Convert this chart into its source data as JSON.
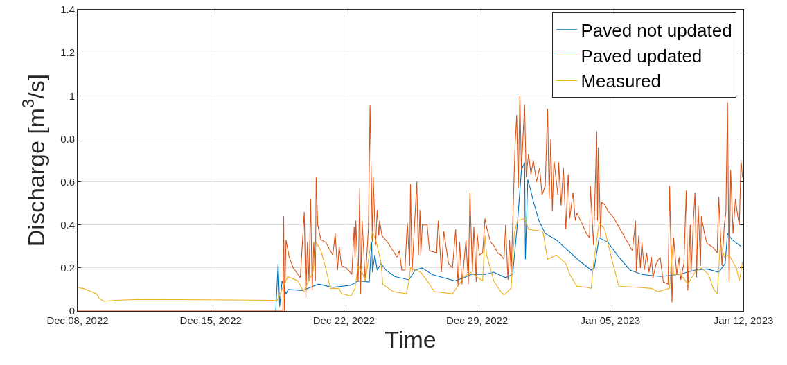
{
  "chart_data": {
    "type": "line",
    "xlabel": "Time",
    "ylabel": "Discharge [m$^{3}$/s]",
    "xlim": [
      "2022-12-08",
      "2023-01-12"
    ],
    "xticks": [
      {
        "value": "2022-12-08",
        "label": "Dec 08, 2022"
      },
      {
        "value": "2022-12-15",
        "label": "Dec 15, 2022"
      },
      {
        "value": "2022-12-22",
        "label": "Dec 22, 2022"
      },
      {
        "value": "2022-12-29",
        "label": "Dec 29, 2022"
      },
      {
        "value": "2023-01-05",
        "label": "Jan 05, 2023"
      },
      {
        "value": "2023-01-12",
        "label": "Jan 12, 2023"
      }
    ],
    "ylim": [
      0,
      1.4
    ],
    "yticks": [
      0,
      0.2,
      0.4,
      0.6,
      0.8,
      1,
      1.2,
      1.4
    ],
    "grid": true,
    "legend": "top right",
    "marker": "none",
    "line_style": "solid",
    "series": [
      {
        "name": "Paved not updated",
        "color": "#0072bd",
        "x": [
          "2022-12-18T10:00",
          "2022-12-18T13:00",
          "2022-12-18T15:00",
          "2022-12-18T18:00",
          "2022-12-18T23:00",
          "2022-12-19T02:00",
          "2022-12-19T20:00",
          "2022-12-19T23:00",
          "2022-12-20T16:00",
          "2022-12-21T10:00",
          "2022-12-22T09:00",
          "2022-12-22T18:00",
          "2022-12-23T08:00",
          "2022-12-23T11:00",
          "2022-12-23T12:00",
          "2022-12-23T15:00",
          "2022-12-23T18:00",
          "2022-12-23T23:00",
          "2022-12-24T05:00",
          "2022-12-24T16:00",
          "2022-12-25T10:00",
          "2022-12-25T18:00",
          "2022-12-26T03:00",
          "2022-12-26T15:00",
          "2022-12-27T20:00",
          "2022-12-28T08:00",
          "2022-12-28T16:00",
          "2022-12-29T10:00",
          "2022-12-29T21:00",
          "2022-12-30T03:00",
          "2022-12-30T12:00",
          "2022-12-30T21:00",
          "2022-12-31T03:00",
          "2022-12-31T08:00",
          "2022-12-31T12:00",
          "2022-12-31T13:00",
          "2022-12-31T16:00",
          "2022-12-31T19:00",
          "2022-12-31T23:00",
          "2023-01-01T06:00",
          "2023-01-01T14:00",
          "2023-01-02T04:00",
          "2023-01-02T19:00",
          "2023-01-03T10:00",
          "2023-01-04T00:00",
          "2023-01-04T04:00",
          "2023-01-04T10:00",
          "2023-01-04T21:00",
          "2023-01-05T11:00",
          "2023-01-06T01:00",
          "2023-01-06T16:00",
          "2023-01-07T15:00",
          "2023-01-08T15:00",
          "2023-01-09T11:00",
          "2023-01-10T02:00",
          "2023-01-10T17:00",
          "2023-01-11T01:00",
          "2023-01-11T04:00",
          "2023-01-11T10:00",
          "2023-01-11T21:00"
        ],
        "values": [
          0,
          0.22,
          0.02,
          0.14,
          0.08,
          0.1,
          0.095,
          0.1,
          0.125,
          0.11,
          0.12,
          0.14,
          0.135,
          0.32,
          0.18,
          0.26,
          0.19,
          0.22,
          0.19,
          0.16,
          0.145,
          0.19,
          0.2,
          0.17,
          0.14,
          0.155,
          0.17,
          0.17,
          0.18,
          0.17,
          0.155,
          0.17,
          0.41,
          0.655,
          0.69,
          0.24,
          0.61,
          0.57,
          0.51,
          0.42,
          0.36,
          0.33,
          0.28,
          0.23,
          0.19,
          0.2,
          0.34,
          0.32,
          0.25,
          0.19,
          0.17,
          0.16,
          0.17,
          0.19,
          0.195,
          0.18,
          0.22,
          0.36,
          0.33,
          0.3
        ]
      },
      {
        "name": "Paved updated",
        "color": "#d95319",
        "x": [
          "2022-12-08T00:00",
          "2022-12-18T19:00",
          "2022-12-18T20:00",
          "2022-12-18T21:00",
          "2022-12-18T23:00",
          "2022-12-19T03:00",
          "2022-12-19T08:00",
          "2022-12-19T17:00",
          "2022-12-19T22:00",
          "2022-12-20T00:00",
          "2022-12-20T02:00",
          "2022-12-20T04:00",
          "2022-12-20T06:00",
          "2022-12-20T08:00",
          "2022-12-20T10:00",
          "2022-12-20T12:00",
          "2022-12-20T13:00",
          "2022-12-20T15:00",
          "2022-12-20T19:00",
          "2022-12-21T01:00",
          "2022-12-21T10:00",
          "2022-12-21T13:00",
          "2022-12-21T16:00",
          "2022-12-21T18:00",
          "2022-12-21T21:00",
          "2022-12-22T03:00",
          "2022-12-22T10:00",
          "2022-12-22T13:00",
          "2022-12-22T14:00",
          "2022-12-22T15:00",
          "2022-12-22T18:00",
          "2022-12-22T20:00",
          "2022-12-22T21:00",
          "2022-12-22T23:00",
          "2022-12-23T03:00",
          "2022-12-23T07:00",
          "2022-12-23T09:00",
          "2022-12-23T12:00",
          "2022-12-23T13:00",
          "2022-12-23T16:00",
          "2022-12-23T18:00",
          "2022-12-23T20:00",
          "2022-12-23T21:00",
          "2022-12-24T00:00",
          "2022-12-24T07:00",
          "2022-12-24T19:00",
          "2022-12-24T22:00",
          "2022-12-25T01:00",
          "2022-12-25T05:00",
          "2022-12-25T08:00",
          "2022-12-25T11:00",
          "2022-12-25T12:00",
          "2022-12-25T14:00",
          "2022-12-25T20:00",
          "2022-12-25T22:00",
          "2022-12-26T00:00",
          "2022-12-26T01:00",
          "2022-12-26T03:00",
          "2022-12-26T09:00",
          "2022-12-26T12:00",
          "2022-12-26T21:00",
          "2022-12-26T23:00",
          "2022-12-27T03:00",
          "2022-12-27T06:00",
          "2022-12-27T12:00",
          "2022-12-27T17:00",
          "2022-12-27T21:00",
          "2022-12-28T00:00",
          "2022-12-28T02:00",
          "2022-12-28T05:00",
          "2022-12-28T10:00",
          "2022-12-28T13:00",
          "2022-12-28T15:00",
          "2022-12-28T18:00",
          "2022-12-28T20:00",
          "2022-12-28T23:00",
          "2022-12-29T00:00",
          "2022-12-29T03:00",
          "2022-12-29T07:00",
          "2022-12-29T10:00",
          "2022-12-29T12:00",
          "2022-12-29T17:00",
          "2022-12-29T21:00",
          "2022-12-30T02:00",
          "2022-12-30T06:00",
          "2022-12-30T10:00",
          "2022-12-30T12:00",
          "2022-12-30T15:00",
          "2022-12-30T17:00",
          "2022-12-30T19:00",
          "2022-12-31T00:00",
          "2022-12-31T02:00",
          "2022-12-31T04:00",
          "2022-12-31T06:00",
          "2022-12-31T08:00",
          "2022-12-31T12:00",
          "2022-12-31T14:00",
          "2022-12-31T17:00",
          "2022-12-31T20:00",
          "2022-12-31T23:00",
          "2023-01-01T03:00",
          "2023-01-01T07:00",
          "2023-01-01T10:00",
          "2023-01-01T14:00",
          "2023-01-01T17:00",
          "2023-01-01T19:00",
          "2023-01-01T21:00",
          "2023-01-01T23:00",
          "2023-01-02T01:00",
          "2023-01-02T06:00",
          "2023-01-02T07:00",
          "2023-01-02T10:00",
          "2023-01-02T13:00",
          "2023-01-02T16:00",
          "2023-01-02T19:00",
          "2023-01-02T21:00",
          "2023-01-03T01:00",
          "2023-01-03T04:00",
          "2023-01-03T06:00",
          "2023-01-03T12:00",
          "2023-01-03T18:00",
          "2023-01-03T22:00",
          "2023-01-03T23:00",
          "2023-01-04T03:00",
          "2023-01-04T07:00",
          "2023-01-04T08:00",
          "2023-01-04T09:00",
          "2023-01-04T12:00",
          "2023-01-04T13:00",
          "2023-01-04T17:00",
          "2023-01-04T21:00",
          "2023-01-05T05:00",
          "2023-01-05T14:00",
          "2023-01-06T04:00",
          "2023-01-06T08:00",
          "2023-01-06T09:00",
          "2023-01-06T12:00",
          "2023-01-06T14:00",
          "2023-01-06T16:00",
          "2023-01-06T19:00",
          "2023-01-06T22:00",
          "2023-01-07T01:00",
          "2023-01-07T04:00",
          "2023-01-07T06:00",
          "2023-01-07T10:00",
          "2023-01-07T15:00",
          "2023-01-07T19:00",
          "2023-01-08T01:00",
          "2023-01-08T03:00",
          "2023-01-08T06:00",
          "2023-01-08T08:00",
          "2023-01-08T12:00",
          "2023-01-08T15:00",
          "2023-01-08T17:00",
          "2023-01-08T21:00",
          "2023-01-09T00:00",
          "2023-01-09T02:00",
          "2023-01-09T05:00",
          "2023-01-09T06:00",
          "2023-01-09T09:00",
          "2023-01-09T11:00",
          "2023-01-09T13:00",
          "2023-01-09T15:00",
          "2023-01-09T18:00",
          "2023-01-09T19:00",
          "2023-01-09T23:00",
          "2023-01-10T02:00",
          "2023-01-10T06:00",
          "2023-01-10T10:00",
          "2023-01-10T15:00",
          "2023-01-10T17:00",
          "2023-01-10T21:00",
          "2023-01-11T00:00",
          "2023-01-11T02:00",
          "2023-01-11T04:00",
          "2023-01-11T06:00",
          "2023-01-11T08:00",
          "2023-01-11T11:00",
          "2023-01-11T14:00",
          "2023-01-11T17:00",
          "2023-01-11T19:00",
          "2023-01-11T21:00",
          "2023-01-11T23:00"
        ],
        "values": [
          0,
          0,
          0.44,
          0,
          0.33,
          0.25,
          0.2,
          0.155,
          0.46,
          0.06,
          0.32,
          0.14,
          0.52,
          0.095,
          0.32,
          0.14,
          0.62,
          0.4,
          0.33,
          0.32,
          0.26,
          0.36,
          0.19,
          0.3,
          0.21,
          0.2,
          0.17,
          0.39,
          0.25,
          0.42,
          0.135,
          0.57,
          0.08,
          0.42,
          0.135,
          0.39,
          0.955,
          0.32,
          0.62,
          0.305,
          0.47,
          0.35,
          0.42,
          0.35,
          0.32,
          0.25,
          0.28,
          0.19,
          0.19,
          0.41,
          0.21,
          0.59,
          0.18,
          0.6,
          0.26,
          0.47,
          0.26,
          0.4,
          0.4,
          0.28,
          0.27,
          0.42,
          0.18,
          0.37,
          0.22,
          0.2,
          0.38,
          0.115,
          0.32,
          0.125,
          0.33,
          0.125,
          0.55,
          0.18,
          0.39,
          0.135,
          0.36,
          0.26,
          0.27,
          0.43,
          0.39,
          0.32,
          0.305,
          0.27,
          0.26,
          0.24,
          0.4,
          0.145,
          0.33,
          0.17,
          0.77,
          0.91,
          0.57,
          1.0,
          0.655,
          0.96,
          0.62,
          0.73,
          0.635,
          0.7,
          0.6,
          0.665,
          0.54,
          0.58,
          0.94,
          0.52,
          0.8,
          0.465,
          0.7,
          0.54,
          0.69,
          0.49,
          0.665,
          0.38,
          0.635,
          0.43,
          0.55,
          0.42,
          0.455,
          0.41,
          0.36,
          0.34,
          0.58,
          0.305,
          0.835,
          0.42,
          0.76,
          0.34,
          0.505,
          0.495,
          0.465,
          0.43,
          0.37,
          0.28,
          0.42,
          0.18,
          0.35,
          0.2,
          0.32,
          0.19,
          0.27,
          0.18,
          0.25,
          0.155,
          0.22,
          0.25,
          0.135,
          0.125,
          0.58,
          0.04,
          0.34,
          0.17,
          0.25,
          0.145,
          0.22,
          0.56,
          0.095,
          0.4,
          0.17,
          0.42,
          0.55,
          0.155,
          0.49,
          0.21,
          0.44,
          0.36,
          0.315,
          0.305,
          0.295,
          0.27,
          0.53,
          0.21,
          0.4,
          0.46,
          0.97,
          0.135,
          0.655,
          0.36,
          0.52,
          0.44,
          0.4,
          0.7,
          0.62
        ]
      },
      {
        "name": "Measured",
        "color": "#edb120",
        "x": [
          "2022-12-08T01:00",
          "2022-12-08T07:00",
          "2022-12-09T00:00",
          "2022-12-09T03:00",
          "2022-12-09T09:00",
          "2022-12-10T00:00",
          "2022-12-11T05:00",
          "2022-12-18T12:00",
          "2022-12-19T01:00",
          "2022-12-19T14:00",
          "2022-12-19T21:00",
          "2022-12-20T09:00",
          "2022-12-20T13:00",
          "2022-12-20T19:00",
          "2022-12-21T01:00",
          "2022-12-21T07:00",
          "2022-12-21T18:00",
          "2022-12-21T21:00",
          "2022-12-22T09:00",
          "2022-12-22T14:00",
          "2022-12-22T18:00",
          "2022-12-22T23:00",
          "2022-12-23T03:00",
          "2022-12-23T08:00",
          "2022-12-23T12:00",
          "2022-12-23T17:00",
          "2022-12-23T23:00",
          "2022-12-24T01:00",
          "2022-12-24T14:00",
          "2022-12-25T07:00",
          "2022-12-25T10:00",
          "2022-12-25T12:00",
          "2022-12-26T01:00",
          "2022-12-26T12:00",
          "2022-12-26T18:00",
          "2022-12-27T17:00",
          "2022-12-28T08:00",
          "2022-12-28T16:00",
          "2022-12-28T23:00",
          "2022-12-29T07:00",
          "2022-12-29T10:00",
          "2022-12-29T12:00",
          "2022-12-29T19:00",
          "2022-12-29T21:00",
          "2022-12-30T06:00",
          "2022-12-30T10:00",
          "2022-12-30T19:00",
          "2022-12-30T23:00",
          "2022-12-31T03:00",
          "2022-12-31T12:00",
          "2022-12-31T17:00",
          "2023-01-01T11:00",
          "2023-01-01T17:00",
          "2023-01-02T04:00",
          "2023-01-02T16:00",
          "2023-01-02T21:00",
          "2023-01-03T06:00",
          "2023-01-03T18:00",
          "2023-01-04T00:00",
          "2023-01-04T03:00",
          "2023-01-04T10:00",
          "2023-01-04T17:00",
          "2023-01-05T02:00",
          "2023-01-05T11:00",
          "2023-01-06T10:00",
          "2023-01-07T04:00",
          "2023-01-07T12:00",
          "2023-01-08T03:00",
          "2023-01-08T06:00",
          "2023-01-08T08:00",
          "2023-01-08T17:00",
          "2023-01-09T02:00",
          "2023-01-09T11:00",
          "2023-01-09T19:00",
          "2023-01-10T04:00",
          "2023-01-10T10:00",
          "2023-01-10T15:00",
          "2023-01-10T19:00",
          "2023-01-11T00:00",
          "2023-01-11T06:00",
          "2023-01-11T15:00",
          "2023-01-11T19:00",
          "2023-01-11T23:00"
        ],
        "values": [
          0.108,
          0.105,
          0.08,
          0.06,
          0.045,
          0.05,
          0.054,
          0.05,
          0.16,
          0.14,
          0.09,
          0.18,
          0.32,
          0.28,
          0.2,
          0.105,
          0.105,
          0.08,
          0.07,
          0.105,
          0.21,
          0.18,
          0.14,
          0.26,
          0.37,
          0.32,
          0.22,
          0.125,
          0.09,
          0.08,
          0.14,
          0.2,
          0.18,
          0.125,
          0.09,
          0.08,
          0.16,
          0.18,
          0.16,
          0.14,
          0.35,
          0.26,
          0.17,
          0.14,
          0.09,
          0.075,
          0.105,
          0.36,
          0.42,
          0.43,
          0.38,
          0.37,
          0.24,
          0.26,
          0.22,
          0.17,
          0.115,
          0.11,
          0.105,
          0.22,
          0.41,
          0.38,
          0.24,
          0.115,
          0.11,
          0.105,
          0.09,
          0.105,
          0.305,
          0.17,
          0.17,
          0.125,
          0.18,
          0.2,
          0.17,
          0.105,
          0.08,
          0.32,
          0.25,
          0.26,
          0.2,
          0.14,
          0.23
        ]
      }
    ]
  }
}
